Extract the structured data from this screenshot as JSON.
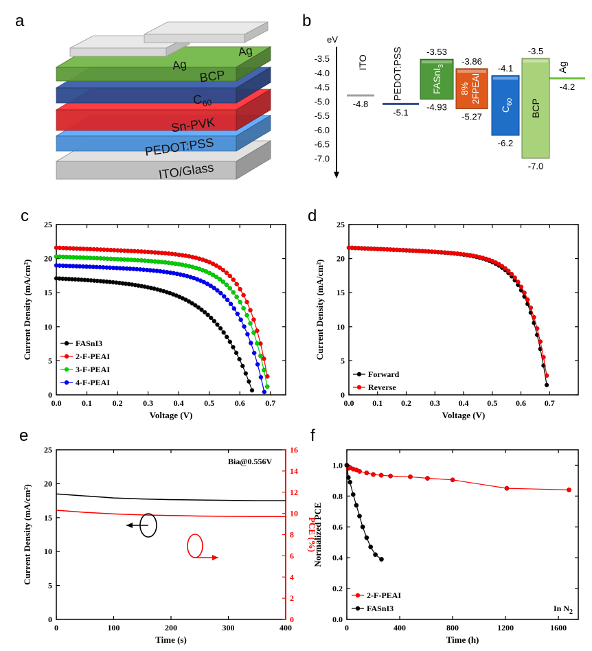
{
  "panels": {
    "a": "a",
    "b": "b",
    "c": "c",
    "d": "d",
    "e": "e",
    "f": "f"
  },
  "stack_layers": [
    {
      "name": "ag",
      "label": "Ag",
      "color": "#d8d8d8"
    },
    {
      "name": "bcp",
      "label": "BCP",
      "color": "#5f9b3a"
    },
    {
      "name": "c60",
      "label": "C",
      "sub": "60",
      "color": "#2d4b8e"
    },
    {
      "name": "snpvk",
      "label": "Sn-PVK",
      "color": "#d9262b"
    },
    {
      "name": "pedot",
      "label": "PEDOT:PSS",
      "color": "#4a8fd8"
    },
    {
      "name": "ito",
      "label": "ITO/Glass",
      "color": "#bdbdbd"
    }
  ],
  "stack_ag_labels": [
    "Ag",
    "Ag"
  ],
  "energy_diagram": {
    "axis_label": "eV",
    "ticks": [
      -3.5,
      -4.0,
      -4.5,
      -5.0,
      -5.5,
      -6.0,
      -6.5,
      -7.0
    ],
    "tick_labels": [
      "-3.5",
      "-4.0",
      "-4.5",
      "-5.0",
      "-5.5",
      "-6.0",
      "-6.5",
      "-7.0"
    ],
    "levels": [
      {
        "name": "ITO",
        "value": -4.8,
        "value_label": "-4.8",
        "color": "#a0a0a0"
      },
      {
        "name": "PEDOT:PSS",
        "value": -5.1,
        "value_label": "-5.1",
        "color": "#2d4b8e"
      },
      {
        "name": "Ag",
        "value": -4.2,
        "value_label": "-4.2",
        "color": "#6cbf3c"
      }
    ],
    "blocks": [
      {
        "name": "FASnI",
        "sub": "3",
        "top": -3.53,
        "bottom": -4.93,
        "top_label": "-3.53",
        "bottom_label": "-4.93",
        "color": "#4f9a3a"
      },
      {
        "name": "8%",
        "name2": "2FPEAI",
        "top": -3.86,
        "bottom": -5.27,
        "top_label": "-3.86",
        "bottom_label": "-5.27",
        "color": "#e05a1e"
      },
      {
        "name": "C",
        "sub": "60",
        "top": -4.1,
        "bottom": -6.2,
        "top_label": "-4.1",
        "bottom_label": "-6.2",
        "color": "#1f6fc9"
      },
      {
        "name": "BCP",
        "top": -3.5,
        "bottom": -7.0,
        "top_label": "-3.5",
        "bottom_label": "-7.0",
        "color": "#a9d37a"
      }
    ]
  },
  "chart_data": [
    {
      "panel": "c",
      "type": "line",
      "xlabel": "Voltage (V)",
      "ylabel": "Current Density (mA/cm²)",
      "xlim": [
        0,
        0.75
      ],
      "ylim": [
        0,
        25
      ],
      "xticks": [
        0.0,
        0.1,
        0.2,
        0.3,
        0.4,
        0.5,
        0.6,
        0.7
      ],
      "xtick_labels": [
        "0.0",
        "0.1",
        "0.2",
        "0.3",
        "0.4",
        "0.5",
        "0.6",
        "0.7"
      ],
      "yticks": [
        0,
        5,
        10,
        15,
        20,
        25
      ],
      "ytick_labels": [
        "0",
        "5",
        "10",
        "15",
        "20",
        "25"
      ],
      "legend_position": "bottom-left",
      "series": [
        {
          "name": "FASnI3",
          "color": "#000000",
          "jsc": 17.1,
          "voc": 0.645,
          "ff": 0.62,
          "x_end": 0.64
        },
        {
          "name": "2-F-PEAI",
          "color": "#ff0000",
          "jsc": 21.6,
          "voc": 0.7,
          "ff": 0.74,
          "x_end": 0.69
        },
        {
          "name": "3-F-PEAI",
          "color": "#00d200",
          "jsc": 20.3,
          "voc": 0.695,
          "ff": 0.72,
          "x_end": 0.69
        },
        {
          "name": "4-F-PEAI",
          "color": "#0000ff",
          "jsc": 19.0,
          "voc": 0.682,
          "ff": 0.7,
          "x_end": 0.68
        }
      ]
    },
    {
      "panel": "d",
      "type": "line",
      "xlabel": "Voltage (V)",
      "ylabel": "Current Density (mA/cm²)",
      "xlim": [
        0,
        0.8
      ],
      "ylim": [
        0,
        25
      ],
      "xticks": [
        0.0,
        0.1,
        0.2,
        0.3,
        0.4,
        0.5,
        0.6,
        0.7
      ],
      "xtick_labels": [
        "0.0",
        "0.1",
        "0.2",
        "0.3",
        "0.4",
        "0.5",
        "0.6",
        "0.7"
      ],
      "yticks": [
        0,
        5,
        10,
        15,
        20,
        25
      ],
      "ytick_labels": [
        "0",
        "5",
        "10",
        "15",
        "20",
        "25"
      ],
      "legend_position": "bottom-left",
      "series": [
        {
          "name": "Forward",
          "color": "#000000",
          "jsc": 21.6,
          "voc": 0.695,
          "ff": 0.745,
          "x_end": 0.69
        },
        {
          "name": "Reverse",
          "color": "#ff0000",
          "jsc": 21.6,
          "voc": 0.7,
          "ff": 0.75,
          "x_end": 0.69
        }
      ]
    },
    {
      "panel": "e",
      "type": "line",
      "xlabel": "Time (s)",
      "ylabel": "Current Density (mA/cm²)",
      "y2label": "PCE (%)",
      "annotation": "Bia@0.556V",
      "xlim": [
        0,
        400
      ],
      "ylim": [
        0,
        25
      ],
      "y2lim": [
        0,
        16
      ],
      "xticks": [
        0,
        100,
        200,
        300,
        400
      ],
      "xtick_labels": [
        "0",
        "100",
        "200",
        "300",
        "400"
      ],
      "yticks": [
        0,
        5,
        10,
        15,
        20,
        25
      ],
      "ytick_labels": [
        "0",
        "5",
        "10",
        "15",
        "20",
        "25"
      ],
      "y2ticks": [
        0,
        2,
        4,
        6,
        8,
        10,
        12,
        14,
        16
      ],
      "y2tick_labels": [
        "0",
        "2",
        "4",
        "6",
        "8",
        "10",
        "12",
        "14",
        "16"
      ],
      "series": [
        {
          "axis": "left",
          "color": "#000000",
          "x": [
            0,
            50,
            100,
            150,
            200,
            250,
            300,
            350,
            400
          ],
          "y": [
            18.5,
            18.2,
            17.9,
            17.75,
            17.65,
            17.6,
            17.55,
            17.5,
            17.5
          ]
        },
        {
          "axis": "right",
          "color": "#ff0000",
          "x": [
            0,
            50,
            100,
            150,
            200,
            250,
            300,
            350,
            400
          ],
          "y": [
            10.3,
            10.1,
            9.95,
            9.85,
            9.8,
            9.75,
            9.72,
            9.7,
            9.7
          ]
        }
      ]
    },
    {
      "panel": "f",
      "type": "line",
      "xlabel": "Time (h)",
      "ylabel": "Normalized PCE",
      "annotation": "In N",
      "annotation_sub": "2",
      "xlim": [
        0,
        1750
      ],
      "ylim": [
        0,
        1.1
      ],
      "xticks": [
        0,
        400,
        800,
        1200,
        1600
      ],
      "xtick_labels": [
        "0",
        "400",
        "800",
        "1200",
        "1600"
      ],
      "yticks": [
        0.0,
        0.2,
        0.4,
        0.6,
        0.8,
        1.0
      ],
      "ytick_labels": [
        "0.0",
        "0.2",
        "0.4",
        "0.6",
        "0.8",
        "1.0"
      ],
      "legend_position": "bottom-left",
      "series": [
        {
          "name": "2-F-PEAI",
          "color": "#ff0000",
          "x": [
            0,
            12,
            24,
            48,
            72,
            96,
            150,
            200,
            260,
            330,
            480,
            610,
            800,
            1210,
            1680
          ],
          "y": [
            1.0,
            0.98,
            0.985,
            0.975,
            0.97,
            0.96,
            0.95,
            0.94,
            0.935,
            0.93,
            0.925,
            0.915,
            0.905,
            0.85,
            0.84
          ]
        },
        {
          "name": "FASnI3",
          "color": "#000000",
          "x": [
            0,
            12,
            24,
            48,
            72,
            96,
            120,
            150,
            180,
            216,
            262
          ],
          "y": [
            1.0,
            0.92,
            0.89,
            0.81,
            0.74,
            0.67,
            0.6,
            0.53,
            0.47,
            0.42,
            0.39
          ]
        }
      ]
    }
  ]
}
